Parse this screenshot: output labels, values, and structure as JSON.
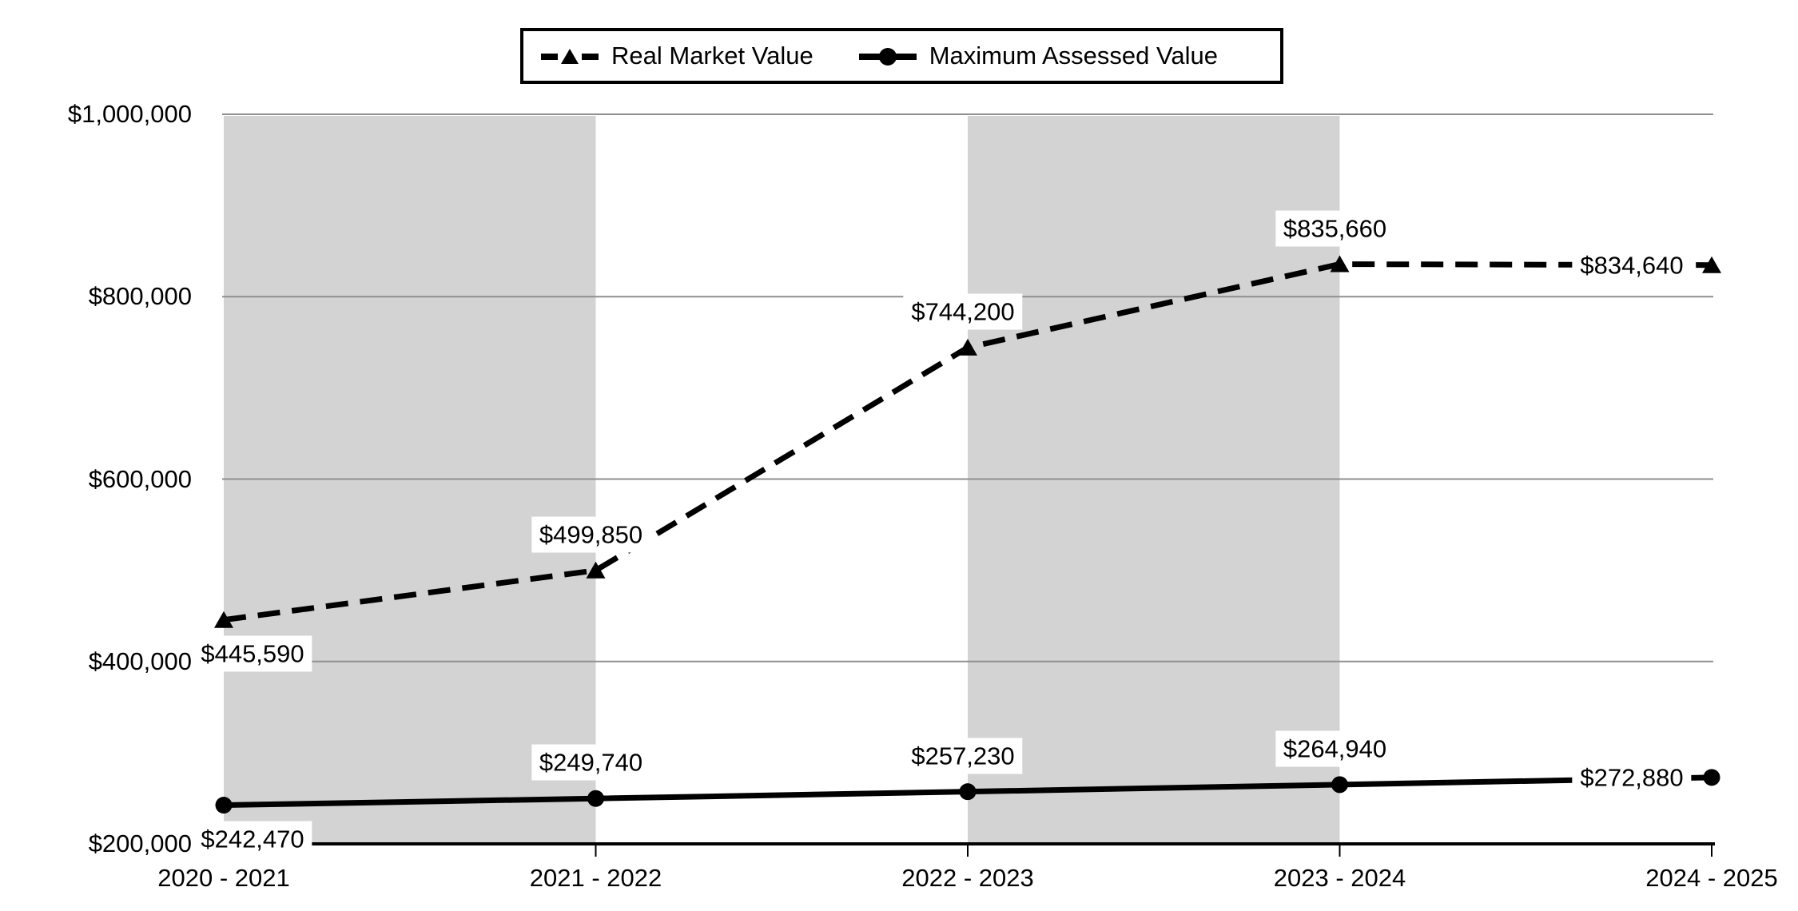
{
  "chart_data": {
    "type": "line",
    "title": "",
    "categories": [
      "2020 - 2021",
      "2021 - 2022",
      "2022 - 2023",
      "2023 - 2024",
      "2024 - 2025"
    ],
    "series": [
      {
        "name": "Real Market Value",
        "values": [
          445590,
          499850,
          744200,
          835660,
          834640
        ],
        "point_labels": [
          "$445,590",
          "$499,850",
          "$744,200",
          "$835,660",
          "$834,640"
        ],
        "label_placement": [
          "below",
          "above",
          "above",
          "above",
          "left"
        ],
        "line_style": "dashed",
        "marker": "triangle"
      },
      {
        "name": "Maximum Assessed Value",
        "values": [
          242470,
          249740,
          257230,
          264940,
          272880
        ],
        "point_labels": [
          "$242,470",
          "$249,740",
          "$257,230",
          "$264,940",
          "$272,880"
        ],
        "label_placement": [
          "below",
          "above",
          "above",
          "above",
          "left"
        ],
        "line_style": "solid",
        "marker": "circle"
      }
    ],
    "y_axis": {
      "min": 200000,
      "max": 1000000,
      "step": 200000,
      "tick_values": [
        200000,
        400000,
        600000,
        800000,
        1000000
      ],
      "tick_labels": [
        "$200,000",
        "$400,000",
        "$600,000",
        "$800,000",
        "$1,000,000"
      ]
    },
    "x_axis": {
      "tick_labels": [
        "2020 - 2021",
        "2021 - 2022",
        "2022 - 2023",
        "2023 - 2024",
        "2024 - 2025"
      ]
    },
    "legend": {
      "position": "top",
      "items": [
        "Real Market Value",
        "Maximum Assessed Value"
      ]
    },
    "grid": true,
    "band_intervals": [
      0,
      2
    ],
    "colors": {
      "series": "#000000",
      "gridline": "#8f8f8f",
      "band": "#d3d3d3",
      "background": "#ffffff",
      "label_background": "#ffffff"
    }
  }
}
